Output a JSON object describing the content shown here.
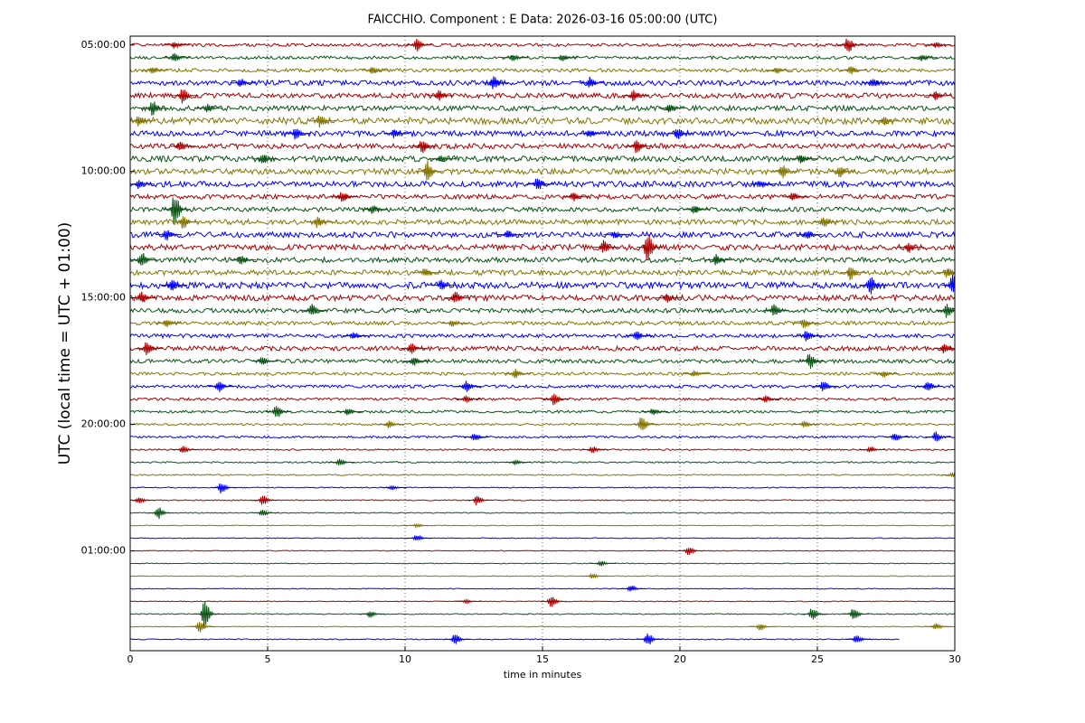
{
  "chart_data": {
    "type": "helicorder",
    "title": "FAICCHIO. Component : E Data: 2026-03-16 05:00:00 (UTC)",
    "x_label": "time in minutes",
    "y_label": "UTC (local time = UTC + 01:00)",
    "xlim": [
      0,
      30
    ],
    "xticks": [
      0,
      5,
      10,
      15,
      20,
      25,
      30
    ],
    "ylim": [
      -0.7,
      47.9
    ],
    "yticks": [
      {
        "value": 0,
        "label": "05:00:00"
      },
      {
        "value": 10,
        "label": "10:00:00"
      },
      {
        "value": 20,
        "label": "15:00:00"
      },
      {
        "value": 30,
        "label": "20:00:00"
      },
      {
        "value": 40,
        "label": "01:00:00"
      }
    ],
    "grid": true,
    "colors": [
      "#aa0000",
      "#0b5416",
      "#857500",
      "#0000ff"
    ],
    "traces": [
      {
        "noise": 0.12,
        "events": [
          [
            10.4,
            0.6
          ],
          [
            26.1,
            0.7
          ],
          [
            1.6,
            0.3
          ],
          [
            29.3,
            0.3
          ]
        ]
      },
      {
        "noise": 0.12,
        "events": [
          [
            1.6,
            0.4
          ],
          [
            13.9,
            0.3
          ],
          [
            15.7,
            0.3
          ],
          [
            28.8,
            0.3
          ]
        ]
      },
      {
        "noise": 0.14,
        "events": [
          [
            0.8,
            0.3
          ],
          [
            8.8,
            0.4
          ],
          [
            23.5,
            0.3
          ],
          [
            26.2,
            0.4
          ]
        ]
      },
      {
        "noise": 0.2,
        "events": [
          [
            4.0,
            0.4
          ],
          [
            13.2,
            0.6
          ],
          [
            16.7,
            0.5
          ],
          [
            27.0,
            0.4
          ]
        ]
      },
      {
        "noise": 0.2,
        "events": [
          [
            1.9,
            0.7
          ],
          [
            11.2,
            0.5
          ],
          [
            18.3,
            0.5
          ],
          [
            29.3,
            0.4
          ]
        ]
      },
      {
        "noise": 0.2,
        "events": [
          [
            0.8,
            0.7
          ],
          [
            2.8,
            0.4
          ],
          [
            19.6,
            0.4
          ]
        ]
      },
      {
        "noise": 0.25,
        "events": [
          [
            6.9,
            0.6
          ],
          [
            0.3,
            0.5
          ],
          [
            27.4,
            0.4
          ]
        ]
      },
      {
        "noise": 0.22,
        "events": [
          [
            6.0,
            0.5
          ],
          [
            9.6,
            0.4
          ],
          [
            19.9,
            0.5
          ],
          [
            16.7,
            0.3
          ]
        ]
      },
      {
        "noise": 0.2,
        "events": [
          [
            1.8,
            0.4
          ],
          [
            10.6,
            0.6
          ],
          [
            18.4,
            0.6
          ]
        ]
      },
      {
        "noise": 0.22,
        "events": [
          [
            4.8,
            0.5
          ],
          [
            24.4,
            0.4
          ],
          [
            11.3,
            0.3
          ]
        ]
      },
      {
        "noise": 0.22,
        "events": [
          [
            10.8,
            0.9
          ],
          [
            23.7,
            0.6
          ],
          [
            25.8,
            0.5
          ]
        ]
      },
      {
        "noise": 0.22,
        "events": [
          [
            14.8,
            0.6
          ],
          [
            0.3,
            0.4
          ],
          [
            22.9,
            0.4
          ]
        ]
      },
      {
        "noise": 0.18,
        "events": [
          [
            7.7,
            0.5
          ],
          [
            16.1,
            0.4
          ],
          [
            24.1,
            0.4
          ]
        ]
      },
      {
        "noise": 0.18,
        "events": [
          [
            1.6,
            1.4
          ],
          [
            8.8,
            0.4
          ],
          [
            20.5,
            0.4
          ]
        ]
      },
      {
        "noise": 0.2,
        "events": [
          [
            1.9,
            0.6
          ],
          [
            6.8,
            0.5
          ],
          [
            25.2,
            0.5
          ]
        ]
      },
      {
        "noise": 0.22,
        "events": [
          [
            1.3,
            0.5
          ],
          [
            13.7,
            0.4
          ],
          [
            24.6,
            0.4
          ],
          [
            17.6,
            0.3
          ]
        ]
      },
      {
        "noise": 0.22,
        "events": [
          [
            18.8,
            1.3
          ],
          [
            17.2,
            0.6
          ],
          [
            28.3,
            0.5
          ]
        ]
      },
      {
        "noise": 0.2,
        "events": [
          [
            0.4,
            0.7
          ],
          [
            21.3,
            0.5
          ],
          [
            4.0,
            0.4
          ]
        ]
      },
      {
        "noise": 0.2,
        "events": [
          [
            26.2,
            0.7
          ],
          [
            10.7,
            0.4
          ],
          [
            29.7,
            0.5
          ]
        ]
      },
      {
        "noise": 0.25,
        "events": [
          [
            26.9,
            0.9
          ],
          [
            29.9,
            0.9
          ],
          [
            11.3,
            0.5
          ],
          [
            1.5,
            0.5
          ]
        ]
      },
      {
        "noise": 0.22,
        "events": [
          [
            11.8,
            0.6
          ],
          [
            0.4,
            0.5
          ],
          [
            19.5,
            0.4
          ]
        ]
      },
      {
        "noise": 0.18,
        "events": [
          [
            6.6,
            0.6
          ],
          [
            23.4,
            0.6
          ],
          [
            29.7,
            0.6
          ]
        ]
      },
      {
        "noise": 0.15,
        "events": [
          [
            1.3,
            0.4
          ],
          [
            11.7,
            0.3
          ],
          [
            24.5,
            0.4
          ]
        ]
      },
      {
        "noise": 0.15,
        "events": [
          [
            18.4,
            0.4
          ],
          [
            24.6,
            0.5
          ],
          [
            8.1,
            0.3
          ]
        ]
      },
      {
        "noise": 0.18,
        "events": [
          [
            0.6,
            0.7
          ],
          [
            10.2,
            0.5
          ],
          [
            29.6,
            0.5
          ]
        ]
      },
      {
        "noise": 0.15,
        "events": [
          [
            4.8,
            0.4
          ],
          [
            24.7,
            0.7
          ],
          [
            10.3,
            0.4
          ]
        ]
      },
      {
        "noise": 0.12,
        "events": [
          [
            14.0,
            0.4
          ],
          [
            20.5,
            0.3
          ],
          [
            27.4,
            0.3
          ]
        ]
      },
      {
        "noise": 0.12,
        "events": [
          [
            3.2,
            0.5
          ],
          [
            12.2,
            0.5
          ],
          [
            25.2,
            0.5
          ],
          [
            29.0,
            0.5
          ]
        ]
      },
      {
        "noise": 0.1,
        "events": [
          [
            15.4,
            0.6
          ],
          [
            12.2,
            0.3
          ],
          [
            23.1,
            0.3
          ]
        ]
      },
      {
        "noise": 0.1,
        "events": [
          [
            5.3,
            0.6
          ],
          [
            7.9,
            0.3
          ],
          [
            19.0,
            0.3
          ]
        ]
      },
      {
        "noise": 0.08,
        "events": [
          [
            18.6,
            0.8
          ],
          [
            9.4,
            0.3
          ],
          [
            24.5,
            0.3
          ]
        ]
      },
      {
        "noise": 0.08,
        "events": [
          [
            12.5,
            0.4
          ],
          [
            27.8,
            0.4
          ],
          [
            29.3,
            0.5
          ]
        ]
      },
      {
        "noise": 0.06,
        "events": [
          [
            1.9,
            0.3
          ],
          [
            16.8,
            0.3
          ],
          [
            26.9,
            0.3
          ]
        ]
      },
      {
        "noise": 0.06,
        "events": [
          [
            7.6,
            0.3
          ],
          [
            14.0,
            0.2
          ]
        ]
      },
      {
        "noise": 0.05,
        "events": [
          [
            29.9,
            0.2
          ]
        ]
      },
      {
        "noise": 0.04,
        "events": [
          [
            3.3,
            0.5
          ],
          [
            9.5,
            0.2
          ]
        ]
      },
      {
        "noise": 0.04,
        "events": [
          [
            4.8,
            0.5
          ],
          [
            12.6,
            0.4
          ],
          [
            0.3,
            0.3
          ]
        ]
      },
      {
        "noise": 0.04,
        "events": [
          [
            1.0,
            0.6
          ],
          [
            4.8,
            0.3
          ]
        ]
      },
      {
        "noise": 0.03,
        "events": [
          [
            10.4,
            0.15
          ]
        ]
      },
      {
        "noise": 0.03,
        "events": [
          [
            10.4,
            0.3
          ]
        ]
      },
      {
        "noise": 0.03,
        "events": [
          [
            20.3,
            0.4
          ]
        ]
      },
      {
        "noise": 0.03,
        "events": [
          [
            17.1,
            0.25
          ]
        ]
      },
      {
        "noise": 0.03,
        "events": [
          [
            16.8,
            0.2
          ]
        ]
      },
      {
        "noise": 0.03,
        "events": [
          [
            18.2,
            0.3
          ]
        ]
      },
      {
        "noise": 0.03,
        "events": [
          [
            15.3,
            0.6
          ],
          [
            12.2,
            0.15
          ]
        ]
      },
      {
        "noise": 0.04,
        "events": [
          [
            2.7,
            1.3
          ],
          [
            24.8,
            0.6
          ],
          [
            26.3,
            0.6
          ],
          [
            8.7,
            0.3
          ]
        ]
      },
      {
        "noise": 0.03,
        "events": [
          [
            2.5,
            0.5
          ],
          [
            22.9,
            0.3
          ],
          [
            29.3,
            0.3
          ]
        ]
      },
      {
        "noise": 0.04,
        "end": 28,
        "events": [
          [
            11.8,
            0.5
          ],
          [
            18.8,
            0.6
          ],
          [
            26.4,
            0.4
          ]
        ]
      }
    ]
  }
}
